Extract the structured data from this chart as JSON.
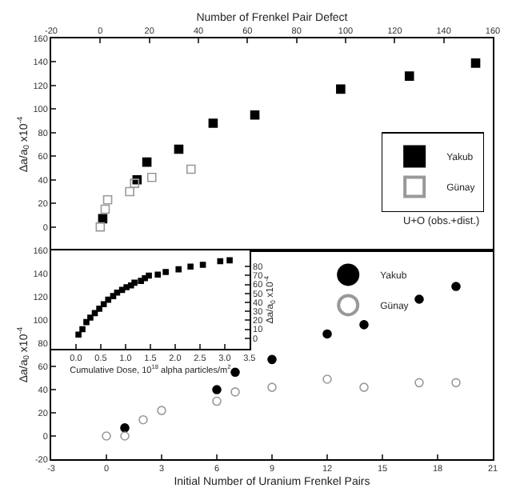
{
  "chart_data": [
    {
      "type": "scatter",
      "xlabel": "Number of Frenkel Pair Defect",
      "ylabel": "Δa/a$_{0}$ x10$^{-4}$",
      "xlim": [
        -20,
        160
      ],
      "xticks": [
        -20,
        0,
        20,
        40,
        60,
        80,
        100,
        120,
        140,
        160
      ],
      "ylim": [
        -20,
        160
      ],
      "yticks": [
        0,
        20,
        40,
        60,
        80,
        100,
        120,
        140,
        160
      ],
      "grid": false,
      "legend": "bottom right",
      "marker": "square",
      "series": [
        {
          "name": "Yakub",
          "color": "#000000",
          "x": [
            1,
            15,
            19,
            32,
            46,
            63,
            98,
            126,
            153
          ],
          "values": [
            7,
            40,
            55,
            66,
            88,
            95,
            117,
            128,
            139
          ]
        },
        {
          "name": "Günay",
          "color": "#999999",
          "marker": "square-open",
          "x": [
            0,
            2,
            3,
            12,
            14,
            21,
            37
          ],
          "values": [
            0,
            15,
            23,
            30,
            37,
            42,
            49
          ]
        }
      ],
      "annotations": [
        "U+O (obs.+dist.)"
      ]
    },
    {
      "type": "scatter",
      "xlabel": "Initial Number of Uranium Frenkel Pairs",
      "ylabel": "Δa/a$_{0}$ x10$^{-4}$",
      "xlim": [
        -3,
        21
      ],
      "xticks": [
        -3,
        0,
        3,
        6,
        9,
        12,
        15,
        18,
        21
      ],
      "ylim": [
        -20,
        160
      ],
      "yticks": [
        -20,
        0,
        20,
        40,
        60,
        80,
        100,
        120,
        140,
        160
      ],
      "grid": false,
      "legend": "top right",
      "marker": "circle",
      "series": [
        {
          "name": "Yakub",
          "color": "#000000",
          "x": [
            1,
            6,
            7,
            9,
            12,
            14,
            17,
            19
          ],
          "values": [
            7,
            40,
            55,
            66,
            88,
            96,
            118,
            129
          ]
        },
        {
          "name": "Günay",
          "color": "#999999",
          "marker": "circle-open",
          "x": [
            0,
            1,
            2,
            3,
            6,
            7,
            9,
            12,
            14,
            17,
            19
          ],
          "values": [
            0,
            0,
            14,
            22,
            30,
            38,
            42,
            49,
            42,
            46,
            46
          ]
        }
      ]
    },
    {
      "type": "scatter",
      "xlabel": "Cumulative Dose, 10$^{18}$ alpha particles/m$^{2}$",
      "y2label": "Δa/a$_{0}$ x10$^{-4}$",
      "xlim": [
        -0.5,
        3.5
      ],
      "xticks": [
        {
          "value": 0,
          "label": "0.0"
        },
        {
          "value": 0.5,
          "label": "0.5"
        },
        {
          "value": 1,
          "label": "1.0"
        },
        {
          "value": 1.5,
          "label": "1.5"
        },
        {
          "value": 2,
          "label": "2.0"
        },
        {
          "value": 2.5,
          "label": "2.5"
        },
        {
          "value": 3,
          "label": "3.0"
        },
        {
          "value": 3.5,
          "label": "3.5"
        }
      ],
      "y2lim": [
        -12,
        98
      ],
      "y2ticks": [
        0,
        10,
        20,
        30,
        40,
        50,
        60,
        70,
        80
      ],
      "grid": false,
      "legend": false,
      "marker": "square",
      "series": [
        {
          "color": "#000000",
          "axis": "y2",
          "x": [
            0.05,
            0.13,
            0.21,
            0.29,
            0.38,
            0.47,
            0.56,
            0.65,
            0.75,
            0.83,
            0.93,
            1.02,
            1.11,
            1.18,
            1.31,
            1.39,
            1.47,
            1.65,
            1.81,
            2.07,
            2.31,
            2.56,
            2.91,
            3.1
          ],
          "values": [
            4,
            10,
            18,
            23,
            28,
            33,
            38,
            43,
            47,
            51,
            54,
            57,
            59,
            62,
            64,
            67,
            70,
            71,
            74,
            77,
            80,
            82,
            86,
            87
          ]
        }
      ]
    }
  ]
}
